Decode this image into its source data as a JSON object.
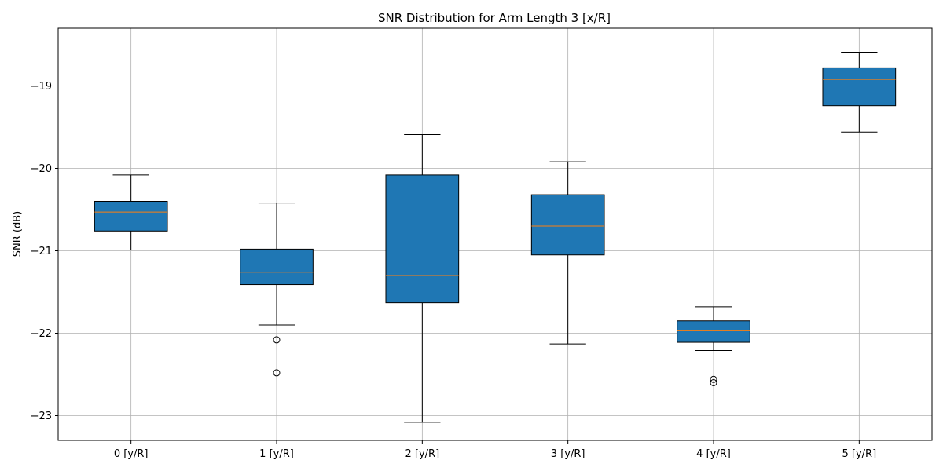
{
  "chart_data": {
    "type": "box",
    "title": "SNR Distribution for Arm Length 3 [x/R]",
    "xlabel": "",
    "ylabel": "SNR (dB)",
    "ylim": [
      -23.3,
      -18.3
    ],
    "yticks": [
      -23,
      -22,
      -21,
      -20,
      -19
    ],
    "grid": true,
    "box_color": "#1f77b4",
    "median_color": "#ff7f0e",
    "categories": [
      "0 [y/R]",
      "1 [y/R]",
      "2 [y/R]",
      "3 [y/R]",
      "4 [y/R]",
      "5 [y/R]"
    ],
    "boxes": [
      {
        "whisker_low": -20.99,
        "q1": -20.76,
        "median": -20.53,
        "q3": -20.4,
        "whisker_high": -20.08,
        "outliers": []
      },
      {
        "whisker_low": -21.9,
        "q1": -21.41,
        "median": -21.26,
        "q3": -20.98,
        "whisker_high": -20.42,
        "outliers": [
          -22.08,
          -22.48
        ]
      },
      {
        "whisker_low": -23.08,
        "q1": -21.63,
        "median": -21.3,
        "q3": -20.08,
        "whisker_high": -19.59,
        "outliers": []
      },
      {
        "whisker_low": -22.13,
        "q1": -21.05,
        "median": -20.7,
        "q3": -20.32,
        "whisker_high": -19.92,
        "outliers": []
      },
      {
        "whisker_low": -22.21,
        "q1": -22.11,
        "median": -21.97,
        "q3": -21.85,
        "whisker_high": -21.68,
        "outliers": [
          -22.56,
          -22.6
        ]
      },
      {
        "whisker_low": -19.56,
        "q1": -19.24,
        "median": -18.92,
        "q3": -18.78,
        "whisker_high": -18.59,
        "outliers": []
      }
    ]
  }
}
